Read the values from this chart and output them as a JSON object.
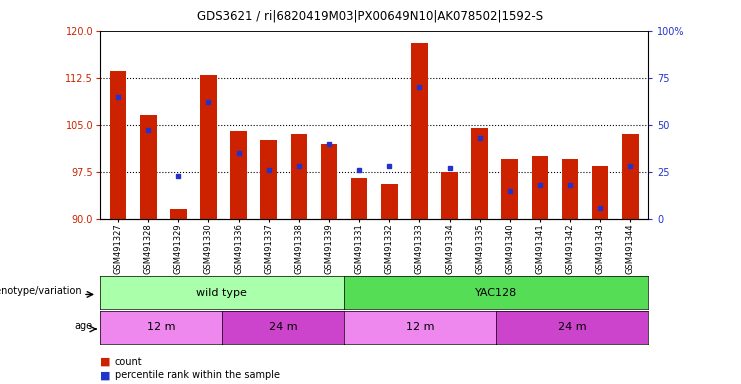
{
  "title": "GDS3621 / ri|6820419M03|PX00649N10|AK078502|1592-S",
  "samples": [
    "GSM491327",
    "GSM491328",
    "GSM491329",
    "GSM491330",
    "GSM491336",
    "GSM491337",
    "GSM491338",
    "GSM491339",
    "GSM491331",
    "GSM491332",
    "GSM491333",
    "GSM491334",
    "GSM491335",
    "GSM491340",
    "GSM491341",
    "GSM491342",
    "GSM491343",
    "GSM491344"
  ],
  "counts": [
    113.5,
    106.5,
    91.5,
    113.0,
    104.0,
    102.5,
    103.5,
    102.0,
    96.5,
    95.5,
    118.0,
    97.5,
    104.5,
    99.5,
    100.0,
    99.5,
    98.5,
    103.5
  ],
  "percentiles": [
    65,
    47,
    23,
    62,
    35,
    26,
    28,
    40,
    26,
    28,
    70,
    27,
    43,
    15,
    18,
    18,
    6,
    28
  ],
  "ymin": 90,
  "ymax": 120,
  "yticks_left": [
    90,
    97.5,
    105,
    112.5,
    120
  ],
  "yticks_right": [
    0,
    25,
    50,
    75,
    100
  ],
  "bar_color": "#CC2200",
  "dot_color": "#2233CC",
  "genotype_groups": [
    {
      "label": "wild type",
      "start": 0,
      "end": 8,
      "color": "#AAFFAA"
    },
    {
      "label": "YAC128",
      "start": 8,
      "end": 18,
      "color": "#55DD55"
    }
  ],
  "age_groups": [
    {
      "label": "12 m",
      "start": 0,
      "end": 4,
      "color": "#EE88EE"
    },
    {
      "label": "24 m",
      "start": 4,
      "end": 8,
      "color": "#CC44CC"
    },
    {
      "label": "12 m",
      "start": 8,
      "end": 13,
      "color": "#EE88EE"
    },
    {
      "label": "24 m",
      "start": 13,
      "end": 18,
      "color": "#CC44CC"
    }
  ],
  "legend_count_color": "#CC2200",
  "legend_pct_color": "#2233CC",
  "left_tick_color": "#CC2200",
  "right_tick_color": "#2233CC",
  "grid_color": "#000000",
  "xtick_bg": "#CCCCCC"
}
